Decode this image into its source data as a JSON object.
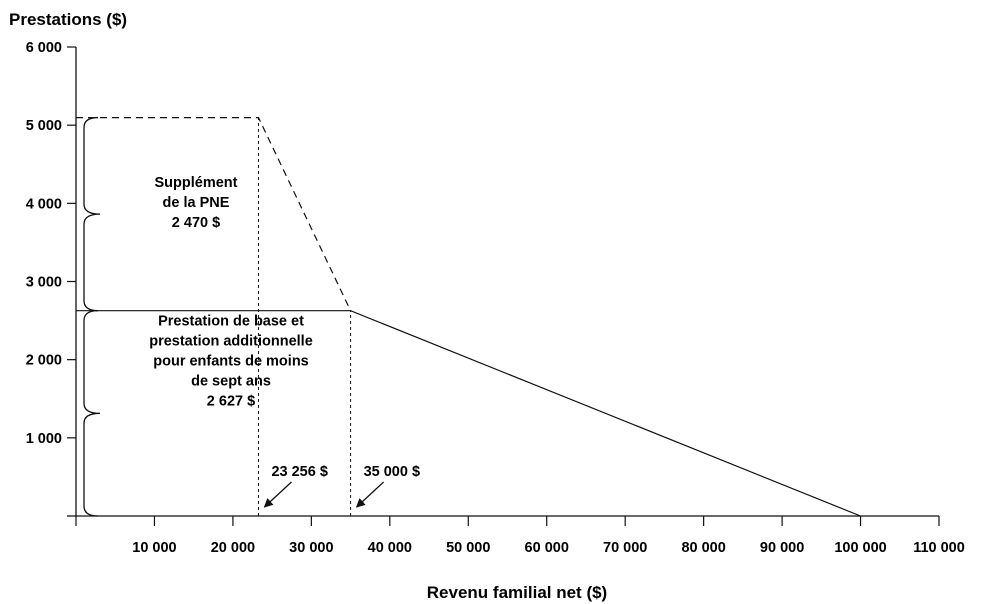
{
  "chart_data": {
    "type": "line",
    "title": "",
    "ylabel": "Prestations ($)",
    "xlabel": "Revenu familial net ($)",
    "xlim": [
      0,
      110000
    ],
    "ylim": [
      0,
      6000
    ],
    "grid": false,
    "x_ticks": [
      10000,
      20000,
      30000,
      40000,
      50000,
      60000,
      70000,
      80000,
      90000,
      100000,
      110000
    ],
    "x_tick_labels": [
      "10 000",
      "20 000",
      "30 000",
      "40 000",
      "50 000",
      "60 000",
      "70 000",
      "80 000",
      "90 000",
      "100 000",
      "110 000"
    ],
    "y_ticks": [
      1000,
      2000,
      3000,
      4000,
      5000,
      6000
    ],
    "y_tick_labels": [
      "1 000",
      "2 000",
      "3 000",
      "4 000",
      "5 000",
      "6 000"
    ],
    "series": [
      {
        "style": "solid",
        "x": [
          0,
          35000,
          100000
        ],
        "y": [
          2627,
          2627,
          0
        ]
      },
      {
        "style": "dashed",
        "x": [
          0,
          23256,
          35000
        ],
        "y": [
          5097,
          5097,
          2627
        ]
      }
    ],
    "reference_lines": [
      {
        "x": 23256,
        "y_max": 5097
      },
      {
        "x": 35000,
        "y_max": 2627
      }
    ],
    "annotations": [
      {
        "text": "23 256 $",
        "x": 23256
      },
      {
        "text": "35 000 $",
        "x": 35000
      }
    ],
    "braces": [
      {
        "y_from": 2627,
        "y_to": 5097,
        "lines": [
          "Supplément",
          "de la PNE",
          "2 470 $"
        ]
      },
      {
        "y_from": 0,
        "y_to": 2627,
        "lines": [
          "Prestation de base et",
          "prestation additionnelle",
          "pour enfants de moins",
          "de sept ans",
          "2 627 $"
        ]
      }
    ]
  }
}
